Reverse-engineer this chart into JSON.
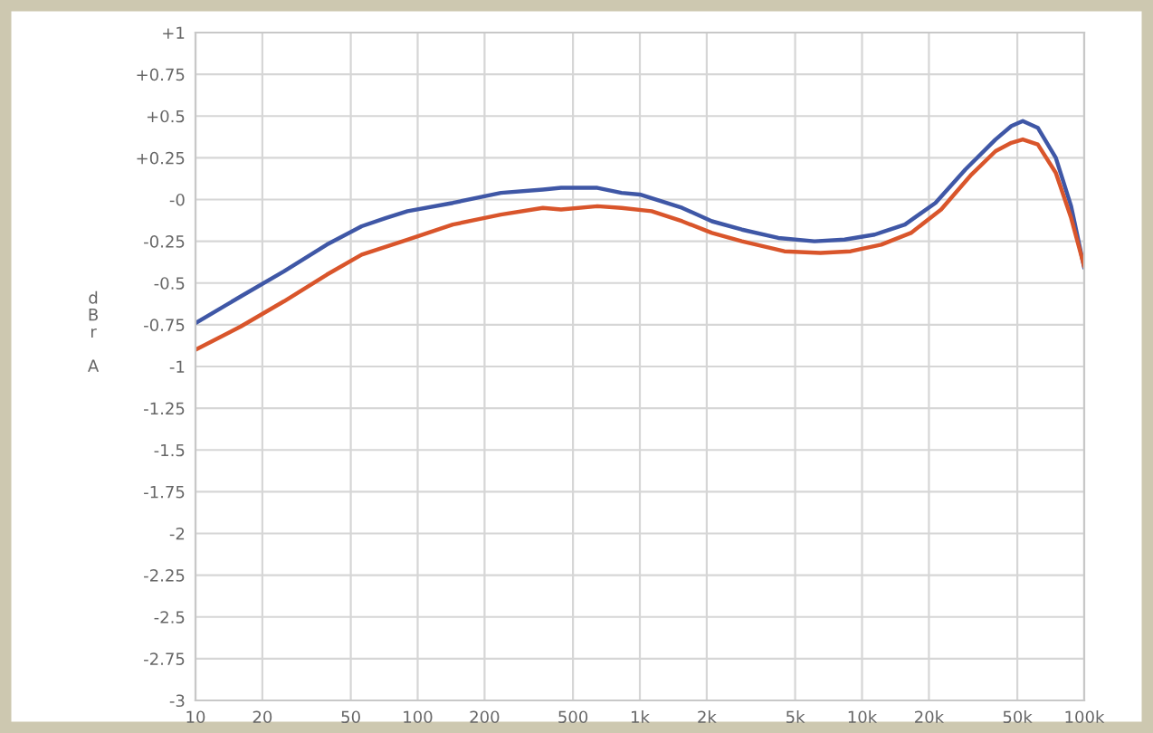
{
  "chart_data": {
    "type": "line",
    "ylabel": "dBr A",
    "log": "x",
    "grid": true,
    "xlim": [
      10,
      100000
    ],
    "xticks": [
      10,
      20,
      50,
      100,
      200,
      500,
      {
        "value": 1000,
        "label": "1k"
      },
      {
        "value": 2000,
        "label": "2k"
      },
      {
        "value": 5000,
        "label": "5k"
      },
      {
        "value": 10000,
        "label": "10k"
      },
      {
        "value": 20000,
        "label": "20k"
      },
      {
        "value": 50000,
        "label": "50k"
      },
      {
        "value": 100000,
        "label": "100k"
      }
    ],
    "ylim": [
      -3,
      1
    ],
    "yticks": [
      {
        "value": 1,
        "label": "+1"
      },
      {
        "value": 0.75,
        "label": "+0.75"
      },
      {
        "value": 0.5,
        "label": "+0.5"
      },
      {
        "value": 0.25,
        "label": "+0.25"
      },
      {
        "value": 0,
        "label": "-0"
      },
      {
        "value": -0.25,
        "label": "-0.25"
      },
      {
        "value": -0.5,
        "label": "-0.5"
      },
      {
        "value": -0.75,
        "label": "-0.75"
      },
      {
        "value": -1,
        "label": "-1"
      },
      {
        "value": -1.25,
        "label": "-1.25"
      },
      {
        "value": -1.5,
        "label": "-1.5"
      },
      {
        "value": -1.75,
        "label": "-1.75"
      },
      {
        "value": -2,
        "label": "-2"
      },
      {
        "value": -2.25,
        "label": "-2.25"
      },
      {
        "value": -2.5,
        "label": "-2.5"
      },
      {
        "value": -2.75,
        "label": "-2.75"
      },
      {
        "value": -3,
        "label": "-3"
      }
    ],
    "series": [
      {
        "color": "#3f57a6",
        "x": [
          10,
          16,
          25,
          39,
          56,
          72,
          90,
          144,
          237,
          366,
          442,
          586,
          644,
          827,
          1000,
          1550,
          2110,
          2880,
          4200,
          6110,
          8350,
          11400,
          15600,
          21400,
          29200,
          39900,
          47000,
          52900,
          61800,
          74500,
          87300,
          100000
        ],
        "values": [
          -0.74,
          -0.58,
          -0.43,
          -0.27,
          -0.16,
          -0.11,
          -0.07,
          -0.02,
          0.04,
          0.06,
          0.07,
          0.07,
          0.07,
          0.04,
          0.03,
          -0.05,
          -0.13,
          -0.18,
          -0.23,
          -0.25,
          -0.24,
          -0.21,
          -0.15,
          -0.02,
          0.18,
          0.36,
          0.44,
          0.47,
          0.43,
          0.25,
          -0.04,
          -0.41
        ]
      },
      {
        "color": "#d9552b",
        "x": [
          10,
          16,
          25,
          39,
          56,
          90,
          144,
          237,
          366,
          442,
          644,
          827,
          1130,
          1550,
          2110,
          2880,
          4470,
          6500,
          8890,
          12200,
          16600,
          22700,
          31100,
          39900,
          47000,
          52900,
          61800,
          74500,
          87300,
          100000
        ],
        "values": [
          -0.9,
          -0.76,
          -0.61,
          -0.45,
          -0.33,
          -0.24,
          -0.15,
          -0.09,
          -0.05,
          -0.06,
          -0.04,
          -0.05,
          -0.07,
          -0.13,
          -0.2,
          -0.25,
          -0.31,
          -0.32,
          -0.31,
          -0.27,
          -0.2,
          -0.06,
          0.15,
          0.29,
          0.34,
          0.36,
          0.33,
          0.16,
          -0.11,
          -0.4
        ]
      }
    ]
  }
}
